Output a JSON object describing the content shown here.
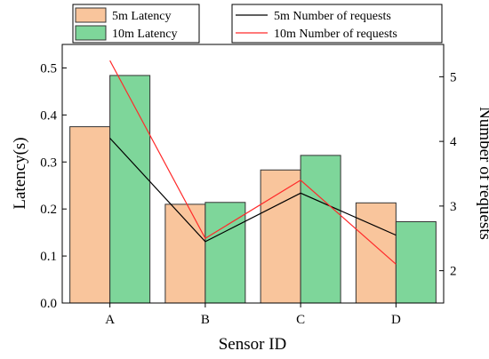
{
  "chart_data": {
    "type": "bar+line",
    "categories": [
      "A",
      "B",
      "C",
      "D"
    ],
    "xlabel": "Sensor ID",
    "ylabel_left": "Latency(s)",
    "ylabel_right": "Number of requests",
    "ylim_left": [
      0,
      0.55
    ],
    "ylim_right": [
      1.5,
      5.5
    ],
    "yticks_left": [
      "0.0",
      "0.1",
      "0.2",
      "0.3",
      "0.4",
      "0.5"
    ],
    "yticks_right": [
      "2",
      "3",
      "4",
      "5"
    ],
    "bars": [
      {
        "name": "5m  Latency",
        "color": "#f9c59c",
        "values": [
          0.375,
          0.21,
          0.283,
          0.213
        ]
      },
      {
        "name": "10m  Latency",
        "color": "#7ed69a",
        "values": [
          0.484,
          0.214,
          0.314,
          0.173
        ]
      }
    ],
    "lines": [
      {
        "name": "5m    Number of requests",
        "color": "#000000",
        "values": [
          4.05,
          2.45,
          3.2,
          2.55
        ]
      },
      {
        "name": "10m    Number of requests",
        "color": "#ff2a2a",
        "values": [
          5.25,
          2.5,
          3.4,
          2.1
        ]
      }
    ],
    "legend_placement": "top",
    "grid": false
  }
}
